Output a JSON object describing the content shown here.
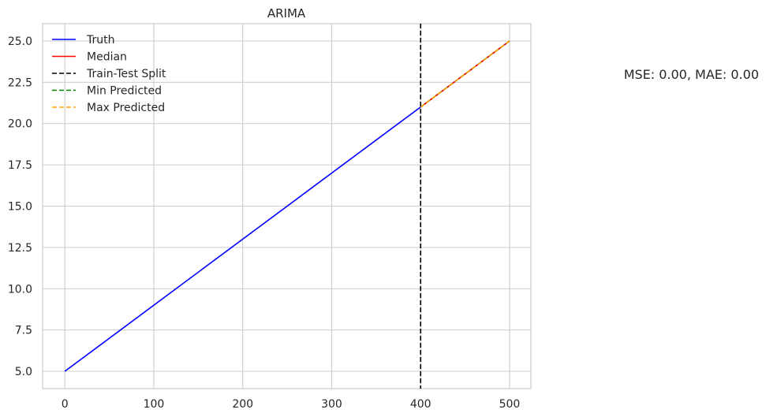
{
  "chart_data": {
    "type": "line",
    "title": "ARIMA",
    "xlabel": "",
    "ylabel": "",
    "xlim": [
      -25,
      524
    ],
    "ylim": [
      3.95,
      26.05
    ],
    "xticks": [
      0,
      100,
      200,
      300,
      400,
      500
    ],
    "xtick_labels": [
      "0",
      "100",
      "200",
      "300",
      "400",
      "500"
    ],
    "yticks": [
      5.0,
      7.5,
      10.0,
      12.5,
      15.0,
      17.5,
      20.0,
      22.5,
      25.0
    ],
    "ytick_labels": [
      "5.0",
      "7.5",
      "10.0",
      "12.5",
      "15.0",
      "17.5",
      "20.0",
      "22.5",
      "25.0"
    ],
    "grid": true,
    "legend_position": "top-left",
    "series": [
      {
        "name": "Truth",
        "color": "#0000ff",
        "style": "solid",
        "x": [
          0,
          500
        ],
        "y": [
          5.0,
          25.0
        ]
      },
      {
        "name": "Median",
        "color": "#ff0000",
        "style": "solid",
        "x": [
          400,
          500
        ],
        "y": [
          21.0,
          25.0
        ]
      },
      {
        "name": "Min Predicted",
        "color": "#008000",
        "style": "dashed",
        "x": [
          400,
          500
        ],
        "y": [
          21.0,
          25.0
        ]
      },
      {
        "name": "Max Predicted",
        "color": "#ffa500",
        "style": "dashed",
        "x": [
          400,
          500
        ],
        "y": [
          21.0,
          25.0
        ]
      }
    ],
    "vlines": [
      {
        "name": "Train-Test Split",
        "color": "#000000",
        "style": "dashed",
        "x": 400
      }
    ],
    "legend": [
      {
        "label": "Truth",
        "color": "#0000ff",
        "style": "solid"
      },
      {
        "label": "Median",
        "color": "#ff0000",
        "style": "solid"
      },
      {
        "label": "Train-Test Split",
        "color": "#000000",
        "style": "dashed"
      },
      {
        "label": "Min Predicted",
        "color": "#008000",
        "style": "dashed"
      },
      {
        "label": "Max Predicted",
        "color": "#ffa500",
        "style": "dashed"
      }
    ],
    "annotation": "MSE: 0.00, MAE: 0.00"
  }
}
